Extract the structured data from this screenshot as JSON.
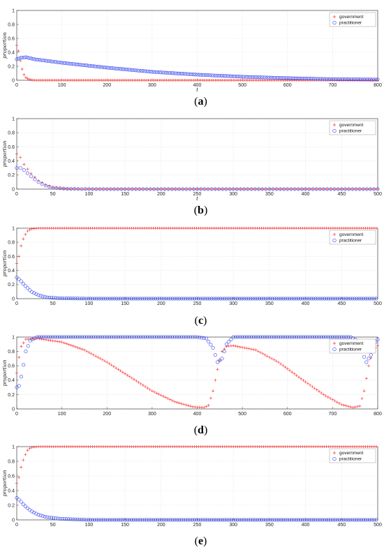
{
  "colors": {
    "government": "#ff3b3b",
    "practitioner": "#3344ee",
    "grid": "#e2e2e2",
    "axis": "#444444"
  },
  "chart_data": [
    {
      "type": "scatter",
      "caption": "a",
      "xlabel": "t",
      "ylabel": "proportion",
      "xlim": [
        0,
        800
      ],
      "ylim": [
        0,
        1
      ],
      "xticks": [
        0,
        100,
        200,
        300,
        400,
        500,
        600,
        700,
        800
      ],
      "yticks": [
        0,
        0.2,
        0.4,
        0.6,
        0.8,
        1
      ],
      "grid": true,
      "legend_position": "top-right",
      "series": [
        {
          "name": "government",
          "marker": "plus",
          "color": "#ff3b3b",
          "step": 4,
          "values": [
            [
              0,
              0.5
            ],
            [
              4,
              0.42
            ],
            [
              8,
              0.28
            ],
            [
              12,
              0.16
            ],
            [
              16,
              0.08
            ],
            [
              20,
              0.04
            ],
            [
              28,
              0.01
            ],
            [
              40,
              0.0
            ],
            [
              800,
              0.0
            ]
          ]
        },
        {
          "name": "practitioner",
          "marker": "circle",
          "color": "#3344ee",
          "step": 4,
          "values": [
            [
              0,
              0.3
            ],
            [
              8,
              0.32
            ],
            [
              20,
              0.33
            ],
            [
              40,
              0.3
            ],
            [
              100,
              0.25
            ],
            [
              200,
              0.18
            ],
            [
              300,
              0.12
            ],
            [
              400,
              0.08
            ],
            [
              500,
              0.05
            ],
            [
              600,
              0.03
            ],
            [
              700,
              0.015
            ],
            [
              800,
              0.01
            ]
          ]
        }
      ]
    },
    {
      "type": "scatter",
      "caption": "b",
      "xlabel": "t",
      "ylabel": "proportion",
      "xlim": [
        0,
        500
      ],
      "ylim": [
        0,
        1
      ],
      "xticks": [
        0,
        50,
        100,
        150,
        200,
        250,
        300,
        350,
        400,
        450,
        500
      ],
      "yticks": [
        0,
        0.2,
        0.4,
        0.6,
        0.8,
        1
      ],
      "grid": true,
      "legend_position": "top-right",
      "series": [
        {
          "name": "government",
          "marker": "plus",
          "color": "#ff3b3b",
          "step": 5,
          "values": [
            [
              0,
              0.5
            ],
            [
              5,
              0.45
            ],
            [
              10,
              0.35
            ],
            [
              20,
              0.22
            ],
            [
              30,
              0.12
            ],
            [
              40,
              0.06
            ],
            [
              50,
              0.025
            ],
            [
              70,
              0.005
            ],
            [
              100,
              0.0
            ],
            [
              500,
              0.0
            ]
          ]
        },
        {
          "name": "practitioner",
          "marker": "circle",
          "color": "#3344ee",
          "step": 5,
          "values": [
            [
              0,
              0.3
            ],
            [
              5,
              0.3
            ],
            [
              10,
              0.27
            ],
            [
              20,
              0.18
            ],
            [
              30,
              0.1
            ],
            [
              40,
              0.05
            ],
            [
              50,
              0.02
            ],
            [
              70,
              0.005
            ],
            [
              100,
              0.0
            ],
            [
              500,
              0.0
            ]
          ]
        }
      ]
    },
    {
      "type": "scatter",
      "caption": "c",
      "xlabel": "",
      "ylabel": "proportion",
      "xlim": [
        0,
        500
      ],
      "ylim": [
        0,
        1
      ],
      "xticks": [
        0,
        50,
        100,
        150,
        200,
        250,
        300,
        350,
        400,
        450,
        500
      ],
      "yticks": [
        0,
        0.2,
        0.4,
        0.6,
        0.8,
        1
      ],
      "grid": true,
      "legend_position": "top-right",
      "series": [
        {
          "name": "government",
          "marker": "plus",
          "color": "#ff3b3b",
          "step": 3,
          "values": [
            [
              0,
              0.5
            ],
            [
              3,
              0.6
            ],
            [
              6,
              0.75
            ],
            [
              10,
              0.88
            ],
            [
              15,
              0.96
            ],
            [
              20,
              0.99
            ],
            [
              30,
              1.0
            ],
            [
              500,
              1.0
            ]
          ]
        },
        {
          "name": "practitioner",
          "marker": "circle",
          "color": "#3344ee",
          "step": 3,
          "values": [
            [
              0,
              0.3
            ],
            [
              5,
              0.26
            ],
            [
              10,
              0.2
            ],
            [
              20,
              0.1
            ],
            [
              30,
              0.05
            ],
            [
              40,
              0.02
            ],
            [
              60,
              0.005
            ],
            [
              100,
              0.0
            ],
            [
              500,
              0.0
            ]
          ]
        }
      ]
    },
    {
      "type": "scatter",
      "caption": "d",
      "xlabel": "",
      "ylabel": "proportion",
      "xlim": [
        0,
        800
      ],
      "ylim": [
        0,
        1
      ],
      "xticks": [
        0,
        100,
        200,
        300,
        400,
        500,
        600,
        700,
        800
      ],
      "yticks": [
        0,
        0.2,
        0.4,
        0.6,
        0.8,
        1
      ],
      "grid": true,
      "legend_position": "top-right",
      "series": [
        {
          "name": "government",
          "marker": "plus",
          "color": "#ff3b3b",
          "step": 5,
          "values": [
            [
              0,
              0.5
            ],
            [
              8,
              0.85
            ],
            [
              20,
              0.97
            ],
            [
              45,
              0.98
            ],
            [
              100,
              0.93
            ],
            [
              150,
              0.82
            ],
            [
              200,
              0.65
            ],
            [
              250,
              0.45
            ],
            [
              300,
              0.25
            ],
            [
              350,
              0.1
            ],
            [
              390,
              0.03
            ],
            [
              415,
              0.02
            ],
            [
              425,
              0.05
            ],
            [
              435,
              0.25
            ],
            [
              445,
              0.55
            ],
            [
              455,
              0.8
            ],
            [
              465,
              0.87
            ],
            [
              480,
              0.88
            ],
            [
              530,
              0.82
            ],
            [
              580,
              0.65
            ],
            [
              630,
              0.42
            ],
            [
              680,
              0.2
            ],
            [
              720,
              0.06
            ],
            [
              745,
              0.02
            ],
            [
              760,
              0.04
            ],
            [
              770,
              0.25
            ],
            [
              780,
              0.6
            ],
            [
              790,
              0.82
            ],
            [
              800,
              0.88
            ]
          ]
        },
        {
          "name": "practitioner",
          "marker": "circle",
          "color": "#3344ee",
          "step": 5,
          "values": [
            [
              0,
              0.3
            ],
            [
              5,
              0.32
            ],
            [
              12,
              0.5
            ],
            [
              20,
              0.8
            ],
            [
              30,
              0.95
            ],
            [
              45,
              1.0
            ],
            [
              400,
              1.0
            ],
            [
              420,
              0.98
            ],
            [
              435,
              0.85
            ],
            [
              445,
              0.65
            ],
            [
              455,
              0.7
            ],
            [
              465,
              0.9
            ],
            [
              480,
              1.0
            ],
            [
              740,
              1.0
            ],
            [
              755,
              0.95
            ],
            [
              765,
              0.8
            ],
            [
              775,
              0.65
            ],
            [
              785,
              0.75
            ],
            [
              795,
              0.93
            ],
            [
              800,
              0.97
            ]
          ]
        }
      ]
    },
    {
      "type": "scatter",
      "caption": "e",
      "xlabel": "",
      "ylabel": "proportion",
      "xlim": [
        0,
        500
      ],
      "ylim": [
        0,
        1
      ],
      "xticks": [
        0,
        50,
        100,
        150,
        200,
        250,
        300,
        350,
        400,
        450,
        500
      ],
      "yticks": [
        0,
        0.2,
        0.4,
        0.6,
        0.8,
        1
      ],
      "grid": true,
      "legend_position": "top-right",
      "series": [
        {
          "name": "government",
          "marker": "plus",
          "color": "#ff3b3b",
          "step": 3,
          "values": [
            [
              0,
              0.5
            ],
            [
              3,
              0.58
            ],
            [
              6,
              0.72
            ],
            [
              10,
              0.85
            ],
            [
              15,
              0.95
            ],
            [
              20,
              0.99
            ],
            [
              30,
              1.0
            ],
            [
              500,
              1.0
            ]
          ]
        },
        {
          "name": "practitioner",
          "marker": "circle",
          "color": "#3344ee",
          "step": 3,
          "values": [
            [
              0,
              0.3
            ],
            [
              5,
              0.26
            ],
            [
              10,
              0.2
            ],
            [
              20,
              0.12
            ],
            [
              30,
              0.07
            ],
            [
              40,
              0.04
            ],
            [
              60,
              0.015
            ],
            [
              100,
              0.0
            ],
            [
              500,
              0.0
            ]
          ]
        }
      ]
    }
  ]
}
